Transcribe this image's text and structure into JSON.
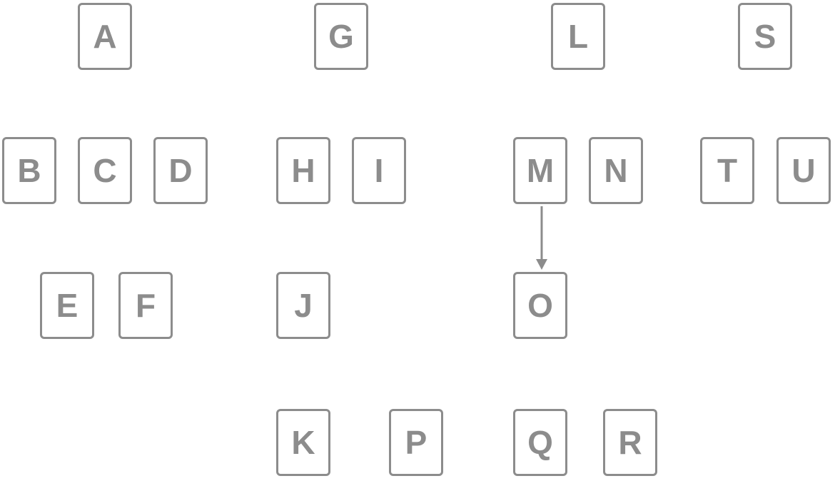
{
  "diagram": {
    "node_color": "#8c8c8c",
    "edge_color": "#8c8c8c",
    "nodes": {
      "A": "A",
      "B": "B",
      "C": "C",
      "D": "D",
      "E": "E",
      "F": "F",
      "G": "G",
      "H": "H",
      "I": "I",
      "J": "J",
      "K": "K",
      "L": "L",
      "M": "M",
      "N": "N",
      "O": "O",
      "P": "P",
      "Q": "Q",
      "R": "R",
      "S": "S",
      "T": "T",
      "U": "U"
    },
    "edges": [
      {
        "from": "M",
        "to": "O"
      }
    ]
  }
}
